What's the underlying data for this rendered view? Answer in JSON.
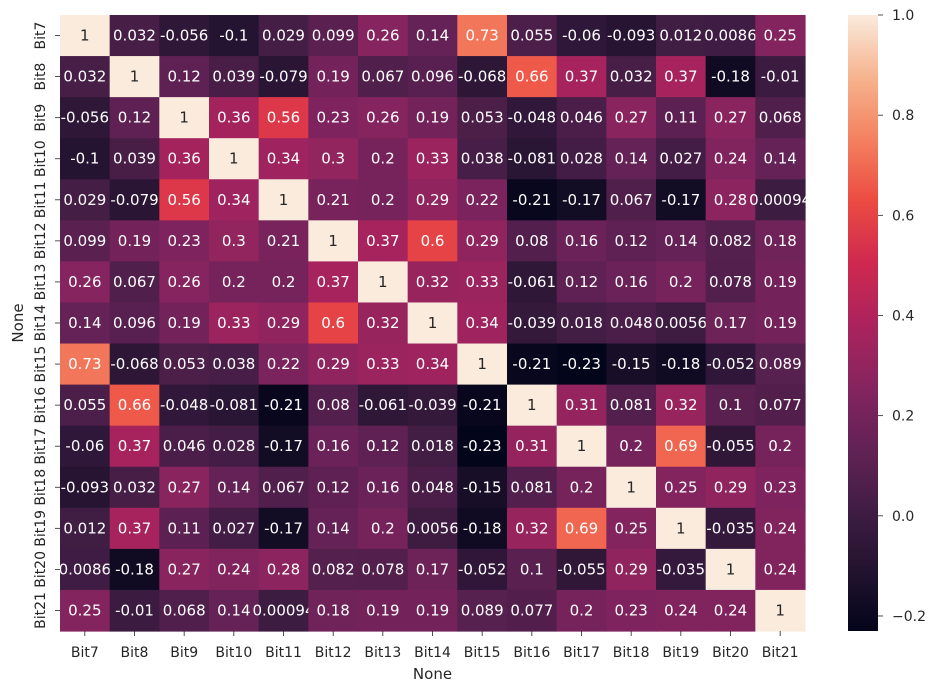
{
  "chart_data": {
    "type": "heatmap",
    "xlabel": "None",
    "ylabel": "None",
    "x_categories": [
      "Bit7",
      "Bit8",
      "Bit9",
      "Bit10",
      "Bit11",
      "Bit12",
      "Bit13",
      "Bit14",
      "Bit15",
      "Bit16",
      "Bit17",
      "Bit18",
      "Bit19",
      "Bit20",
      "Bit21"
    ],
    "y_categories": [
      "Bit7",
      "Bit8",
      "Bit9",
      "Bit10",
      "Bit11",
      "Bit12",
      "Bit13",
      "Bit14",
      "Bit15",
      "Bit16",
      "Bit17",
      "Bit18",
      "Bit19",
      "Bit20",
      "Bit21"
    ],
    "values": [
      [
        1,
        0.032,
        -0.056,
        -0.1,
        0.029,
        0.099,
        0.26,
        0.14,
        0.73,
        0.055,
        -0.06,
        -0.093,
        0.012,
        0.0086,
        0.25
      ],
      [
        0.032,
        1,
        0.12,
        0.039,
        -0.079,
        0.19,
        0.067,
        0.096,
        -0.068,
        0.66,
        0.37,
        0.032,
        0.37,
        -0.18,
        -0.01
      ],
      [
        -0.056,
        0.12,
        1,
        0.36,
        0.56,
        0.23,
        0.26,
        0.19,
        0.053,
        -0.048,
        0.046,
        0.27,
        0.11,
        0.27,
        0.068
      ],
      [
        -0.1,
        0.039,
        0.36,
        1,
        0.34,
        0.3,
        0.2,
        0.33,
        0.038,
        -0.081,
        0.028,
        0.14,
        0.027,
        0.24,
        0.14
      ],
      [
        0.029,
        -0.079,
        0.56,
        0.34,
        1,
        0.21,
        0.2,
        0.29,
        0.22,
        -0.21,
        -0.17,
        0.067,
        -0.17,
        0.28,
        0.00094
      ],
      [
        0.099,
        0.19,
        0.23,
        0.3,
        0.21,
        1,
        0.37,
        0.6,
        0.29,
        0.08,
        0.16,
        0.12,
        0.14,
        0.082,
        0.18
      ],
      [
        0.26,
        0.067,
        0.26,
        0.2,
        0.2,
        0.37,
        1,
        0.32,
        0.33,
        -0.061,
        0.12,
        0.16,
        0.2,
        0.078,
        0.19
      ],
      [
        0.14,
        0.096,
        0.19,
        0.33,
        0.29,
        0.6,
        0.32,
        1,
        0.34,
        -0.039,
        0.018,
        0.048,
        0.0056,
        0.17,
        0.19
      ],
      [
        0.73,
        -0.068,
        0.053,
        0.038,
        0.22,
        0.29,
        0.33,
        0.34,
        1,
        -0.21,
        -0.23,
        -0.15,
        -0.18,
        -0.052,
        0.089
      ],
      [
        0.055,
        0.66,
        -0.048,
        -0.081,
        -0.21,
        0.08,
        -0.061,
        -0.039,
        -0.21,
        1,
        0.31,
        0.081,
        0.32,
        0.1,
        0.077
      ],
      [
        -0.06,
        0.37,
        0.046,
        0.028,
        -0.17,
        0.16,
        0.12,
        0.018,
        -0.23,
        0.31,
        1,
        0.2,
        0.69,
        -0.055,
        0.2
      ],
      [
        -0.093,
        0.032,
        0.27,
        0.14,
        0.067,
        0.12,
        0.16,
        0.048,
        -0.15,
        0.081,
        0.2,
        1,
        0.25,
        0.29,
        0.23
      ],
      [
        0.012,
        0.37,
        0.11,
        0.027,
        -0.17,
        0.14,
        0.2,
        0.0056,
        -0.18,
        0.32,
        0.69,
        0.25,
        1,
        -0.035,
        0.24
      ],
      [
        0.0086,
        -0.18,
        0.27,
        0.24,
        0.28,
        0.082,
        0.078,
        0.17,
        -0.052,
        0.1,
        -0.055,
        0.29,
        -0.035,
        1,
        0.24
      ],
      [
        0.25,
        -0.01,
        0.068,
        0.14,
        0.00094,
        0.18,
        0.19,
        0.19,
        0.089,
        0.077,
        0.2,
        0.23,
        0.24,
        0.24,
        1
      ]
    ],
    "value_range": [
      -0.23,
      1.0
    ],
    "colormap": "rocket",
    "colorbar_ticks": [
      -0.2,
      0.0,
      0.2,
      0.4,
      0.6,
      0.8,
      1.0
    ],
    "colorbar_tick_labels": [
      "−0.2",
      "0.0",
      "0.2",
      "0.4",
      "0.6",
      "0.8",
      "1.0"
    ],
    "annotations": "cell values shown in each cell",
    "grid": false,
    "colorbar_placement": "right"
  }
}
